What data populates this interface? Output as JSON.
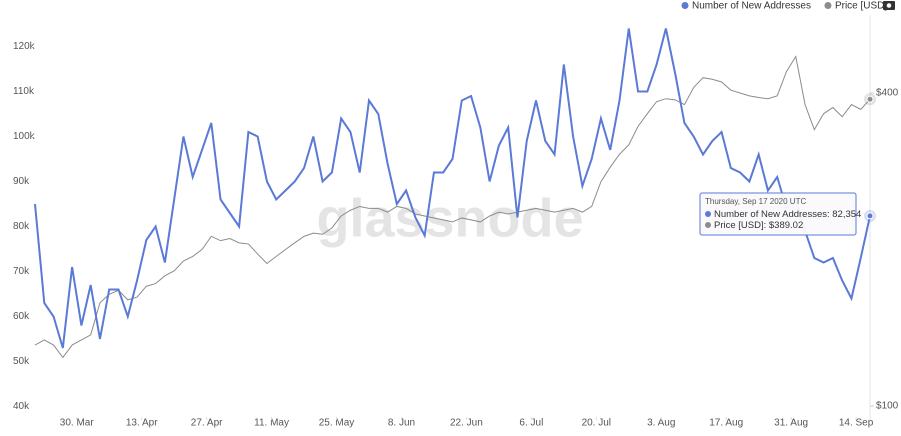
{
  "chart_data": {
    "type": "line",
    "legend": "top-right",
    "watermark": "glassnode",
    "x": [
      "2020-03-21",
      "2020-03-23",
      "2020-03-25",
      "2020-03-27",
      "2020-03-29",
      "2020-03-31",
      "2020-04-02",
      "2020-04-04",
      "2020-04-06",
      "2020-04-08",
      "2020-04-10",
      "2020-04-12",
      "2020-04-14",
      "2020-04-16",
      "2020-04-18",
      "2020-04-20",
      "2020-04-22",
      "2020-04-24",
      "2020-04-26",
      "2020-04-28",
      "2020-04-30",
      "2020-05-02",
      "2020-05-04",
      "2020-05-06",
      "2020-05-08",
      "2020-05-10",
      "2020-05-12",
      "2020-05-14",
      "2020-05-16",
      "2020-05-18",
      "2020-05-20",
      "2020-05-22",
      "2020-05-24",
      "2020-05-26",
      "2020-05-28",
      "2020-05-30",
      "2020-06-01",
      "2020-06-03",
      "2020-06-05",
      "2020-06-07",
      "2020-06-09",
      "2020-06-11",
      "2020-06-13",
      "2020-06-15",
      "2020-06-17",
      "2020-06-19",
      "2020-06-21",
      "2020-06-23",
      "2020-06-25",
      "2020-06-27",
      "2020-06-29",
      "2020-07-01",
      "2020-07-03",
      "2020-07-05",
      "2020-07-07",
      "2020-07-09",
      "2020-07-11",
      "2020-07-13",
      "2020-07-15",
      "2020-07-17",
      "2020-07-19",
      "2020-07-21",
      "2020-07-23",
      "2020-07-25",
      "2020-07-27",
      "2020-07-29",
      "2020-07-31",
      "2020-08-02",
      "2020-08-04",
      "2020-08-06",
      "2020-08-08",
      "2020-08-10",
      "2020-08-12",
      "2020-08-14",
      "2020-08-16",
      "2020-08-18",
      "2020-08-20",
      "2020-08-22",
      "2020-08-24",
      "2020-08-26",
      "2020-08-28",
      "2020-08-30",
      "2020-09-01",
      "2020-09-03",
      "2020-09-05",
      "2020-09-07",
      "2020-09-09",
      "2020-09-11",
      "2020-09-13",
      "2020-09-15",
      "2020-09-17"
    ],
    "xlim": [
      "2020-03-21",
      "2020-09-17"
    ],
    "xticks": [
      {
        "value": "2020-03-30",
        "label": "30. Mar"
      },
      {
        "value": "2020-04-13",
        "label": "13. Apr"
      },
      {
        "value": "2020-04-27",
        "label": "27. Apr"
      },
      {
        "value": "2020-05-11",
        "label": "11. May"
      },
      {
        "value": "2020-05-25",
        "label": "25. May"
      },
      {
        "value": "2020-06-08",
        "label": "8. Jun"
      },
      {
        "value": "2020-06-22",
        "label": "22. Jun"
      },
      {
        "value": "2020-07-06",
        "label": "6. Jul"
      },
      {
        "value": "2020-07-20",
        "label": "20. Jul"
      },
      {
        "value": "2020-08-03",
        "label": "3. Aug"
      },
      {
        "value": "2020-08-17",
        "label": "17. Aug"
      },
      {
        "value": "2020-08-31",
        "label": "31. Aug"
      },
      {
        "value": "2020-09-14",
        "label": "14. Sep"
      }
    ],
    "ylim": [
      37000,
      127000
    ],
    "yticks": [
      {
        "value": 40000,
        "label": "40k"
      },
      {
        "value": 50000,
        "label": "50k"
      },
      {
        "value": 60000,
        "label": "60k"
      },
      {
        "value": 70000,
        "label": "70k"
      },
      {
        "value": 80000,
        "label": "80k"
      },
      {
        "value": 90000,
        "label": "90k"
      },
      {
        "value": 100000,
        "label": "100k"
      },
      {
        "value": 110000,
        "label": "110k"
      },
      {
        "value": 120000,
        "label": "120k"
      }
    ],
    "y2lim": [
      94,
      565
    ],
    "y2scale": "log",
    "y2ticks": [
      {
        "value": 100,
        "label": "$100"
      },
      {
        "value": 400,
        "label": "$400"
      }
    ],
    "series": [
      {
        "name": "Number of New Addresses",
        "color": "#5b79d6",
        "values": [
          85000,
          63000,
          60000,
          53000,
          71000,
          58000,
          67000,
          55000,
          66000,
          66000,
          60000,
          68000,
          77000,
          80000,
          72000,
          86000,
          100000,
          91000,
          97000,
          103000,
          86000,
          83000,
          80000,
          101000,
          100000,
          90000,
          86000,
          88000,
          90000,
          93000,
          100000,
          90000,
          92000,
          104000,
          101000,
          92000,
          108000,
          105000,
          94000,
          85000,
          88000,
          82000,
          78000,
          92000,
          92000,
          95000,
          108000,
          109000,
          102000,
          90000,
          98000,
          102000,
          82000,
          99000,
          108000,
          99000,
          96000,
          116000,
          100000,
          89000,
          95000,
          104000,
          97000,
          108000,
          124000,
          110000,
          110000,
          116000,
          124000,
          114000,
          103000,
          100000,
          96000,
          99000,
          101000,
          93000,
          92000,
          90000,
          96000,
          88000,
          91000,
          84000,
          86000,
          79000,
          73000,
          72000,
          73000,
          68000,
          64000,
          73000,
          82354
        ]
      },
      {
        "name": "Price [USD]",
        "color": "#8c8c8c",
        "axis": "y2",
        "values": [
          131,
          134,
          131,
          124,
          131,
          134,
          137,
          158,
          164,
          167,
          160,
          162,
          170,
          172,
          178,
          182,
          190,
          194,
          200,
          212,
          208,
          210,
          206,
          205,
          196,
          188,
          194,
          200,
          206,
          212,
          215,
          214,
          220,
          232,
          238,
          242,
          240,
          240,
          236,
          242,
          240,
          234,
          232,
          230,
          228,
          226,
          230,
          228,
          226,
          232,
          236,
          234,
          236,
          238,
          240,
          238,
          236,
          238,
          240,
          236,
          242,
          270,
          288,
          305,
          318,
          345,
          365,
          385,
          390,
          388,
          380,
          410,
          428,
          425,
          420,
          405,
          400,
          395,
          392,
          390,
          395,
          440,
          470,
          380,
          340,
          365,
          375,
          360,
          380,
          372,
          389.02
        ]
      }
    ],
    "tooltip": {
      "title": "Thursday, Sep 17 2020 UTC",
      "lines": [
        "Number of New Addresses: 82,354",
        "Price [USD]: $389.02"
      ]
    }
  }
}
